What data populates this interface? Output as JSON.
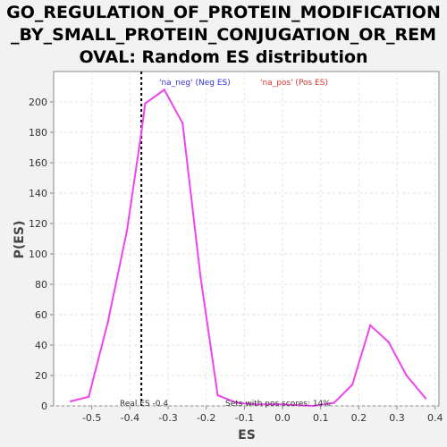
{
  "chart_data": {
    "type": "line",
    "title_lines": [
      "GO_REGULATION_OF_PROTEIN_MODIFICATION",
      "_BY_SMALL_PROTEIN_CONJUGATION_OR_REM",
      "OVAL: Random ES distribution"
    ],
    "xlabel": "ES",
    "ylabel": "P(ES)",
    "xlim": [
      -0.6,
      0.41
    ],
    "ylim": [
      0,
      220
    ],
    "x_ticks": [
      -0.5,
      -0.4,
      -0.3,
      -0.2,
      -0.1,
      0.0,
      0.1,
      0.2,
      0.3,
      0.4
    ],
    "x_tick_labels": [
      "-0.5",
      "-0.4",
      "-0.3",
      "-0.2",
      "-0.1",
      "0.0",
      "0.1",
      "0.2",
      "0.3",
      "0.4"
    ],
    "y_ticks": [
      0,
      20,
      40,
      60,
      80,
      100,
      120,
      140,
      160,
      180,
      200
    ],
    "y_tick_labels": [
      "0",
      "20",
      "40",
      "60",
      "80",
      "100",
      "120",
      "140",
      "160",
      "180",
      "200"
    ],
    "grid": true,
    "series": [
      {
        "name": "na_neg",
        "color": "#ee44ee",
        "x": [
          -0.555,
          -0.508,
          -0.458,
          -0.408,
          -0.37,
          -0.36,
          -0.31,
          -0.262,
          -0.215,
          -0.17,
          -0.12,
          -0.07,
          0.0,
          0.08,
          0.135,
          0.183,
          0.23,
          0.278,
          0.325,
          0.375
        ],
        "y": [
          3,
          6,
          55,
          115,
          180,
          199,
          208,
          186,
          85,
          7,
          2,
          1,
          1,
          0,
          2,
          14,
          53,
          42,
          20,
          5
        ]
      }
    ],
    "legend": [
      {
        "label": "'na_neg' (Neg ES)",
        "color": "#3333dd"
      },
      {
        "label": "'na_pos' (Pos ES)",
        "color": "#dd3333"
      }
    ],
    "legend_placement": "top",
    "real_es": {
      "x": -0.37,
      "label": "Real ES -0.4"
    },
    "annotation": "Sets with pos scores: 14%"
  }
}
